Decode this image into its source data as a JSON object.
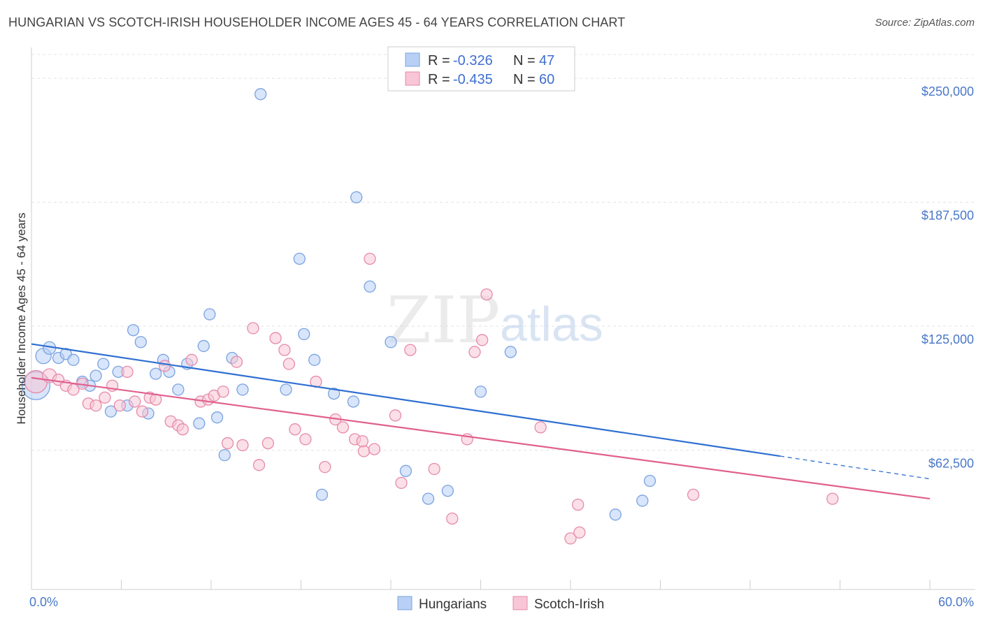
{
  "title": "HUNGARIAN VS SCOTCH-IRISH HOUSEHOLDER INCOME AGES 45 - 64 YEARS CORRELATION CHART",
  "source": "Source: ZipAtlas.com",
  "watermark": {
    "zip": "ZIP",
    "atlas": "atlas"
  },
  "colors": {
    "blue_fill": "#b8d0f5",
    "blue_stroke": "#7aa3e0",
    "blue_line": "#2f6fd1",
    "pink_fill": "#f8c6d6",
    "pink_stroke": "#e68aaa",
    "pink_line": "#e0608e"
  },
  "legend": {
    "rows": [
      {
        "r_label": "R = ",
        "r_value": "-0.326",
        "n_label": "N = ",
        "n_value": "47"
      },
      {
        "r_label": "R = ",
        "r_value": "-0.435",
        "n_label": "N = ",
        "n_value": "60"
      }
    ]
  },
  "bottom_legend": [
    "Hungarians",
    "Scotch-Irish"
  ],
  "chart_data": {
    "type": "scatter",
    "ylabel": "Householder Income Ages 45 - 64 years",
    "x_tick_labels": [
      "0.0%",
      "60.0%"
    ],
    "y_tick_labels": [
      "$250,000",
      "$187,500",
      "$125,000",
      "$62,500"
    ],
    "y_ticks": [
      250000,
      187500,
      125000,
      62500
    ],
    "xlim": [
      0,
      60
    ],
    "ylim": [
      0,
      262000
    ],
    "grid": true,
    "legend_position": "top-center",
    "series": [
      {
        "name": "Hungarians",
        "trend": {
          "x0": 0,
          "y0": 116000,
          "x1": 50,
          "y1": 59500,
          "dash_to_x": 60,
          "dash_to_y": 48000
        },
        "points": [
          [
            0.3,
            95000,
            20
          ],
          [
            0.8,
            110000,
            11
          ],
          [
            1.2,
            114000,
            9
          ],
          [
            1.8,
            109000,
            8
          ],
          [
            2.3,
            111000,
            8
          ],
          [
            2.8,
            108000,
            8
          ],
          [
            3.4,
            97000,
            8
          ],
          [
            3.9,
            95000,
            8
          ],
          [
            4.3,
            100000,
            8
          ],
          [
            4.8,
            106000,
            8
          ],
          [
            5.3,
            82000,
            8
          ],
          [
            5.8,
            102000,
            8
          ],
          [
            6.4,
            85000,
            8
          ],
          [
            6.8,
            123000,
            8
          ],
          [
            7.3,
            117000,
            8
          ],
          [
            7.8,
            81000,
            8
          ],
          [
            8.3,
            101000,
            8
          ],
          [
            8.8,
            108000,
            8
          ],
          [
            9.2,
            102000,
            8
          ],
          [
            9.8,
            93000,
            8
          ],
          [
            10.4,
            106000,
            8
          ],
          [
            11.2,
            76000,
            8
          ],
          [
            11.5,
            115000,
            8
          ],
          [
            11.9,
            131000,
            8
          ],
          [
            12.4,
            79000,
            8
          ],
          [
            12.9,
            60000,
            8
          ],
          [
            13.4,
            109000,
            8
          ],
          [
            14.1,
            93000,
            8
          ],
          [
            15.3,
            242000,
            8
          ],
          [
            17.0,
            93000,
            8
          ],
          [
            17.9,
            159000,
            8
          ],
          [
            18.2,
            121000,
            8
          ],
          [
            18.9,
            108000,
            8
          ],
          [
            19.4,
            40000,
            8
          ],
          [
            20.2,
            91000,
            8
          ],
          [
            21.5,
            87000,
            8
          ],
          [
            21.7,
            190000,
            8
          ],
          [
            22.6,
            145000,
            8
          ],
          [
            24.0,
            117000,
            8
          ],
          [
            25.0,
            52000,
            8
          ],
          [
            26.5,
            38000,
            8
          ],
          [
            27.8,
            42000,
            8
          ],
          [
            30.0,
            92000,
            8
          ],
          [
            32.0,
            112000,
            8
          ],
          [
            39.0,
            30000,
            8
          ],
          [
            40.8,
            37000,
            8
          ],
          [
            41.3,
            47000,
            8
          ]
        ]
      },
      {
        "name": "Scotch-Irish",
        "trend": {
          "x0": 0,
          "y0": 99000,
          "x1": 60,
          "y1": 38000
        },
        "points": [
          [
            0.3,
            97000,
            16
          ],
          [
            1.2,
            100000,
            10
          ],
          [
            1.8,
            98000,
            8
          ],
          [
            2.3,
            95000,
            8
          ],
          [
            2.8,
            93000,
            8
          ],
          [
            3.4,
            96000,
            8
          ],
          [
            3.8,
            86000,
            8
          ],
          [
            4.3,
            85000,
            8
          ],
          [
            4.9,
            89000,
            8
          ],
          [
            5.4,
            95000,
            8
          ],
          [
            5.9,
            85000,
            8
          ],
          [
            6.4,
            102000,
            8
          ],
          [
            6.9,
            87000,
            8
          ],
          [
            7.4,
            82000,
            8
          ],
          [
            7.9,
            89000,
            8
          ],
          [
            8.3,
            88000,
            8
          ],
          [
            8.9,
            105000,
            8
          ],
          [
            9.3,
            77000,
            8
          ],
          [
            9.8,
            75000,
            8
          ],
          [
            10.1,
            73000,
            8
          ],
          [
            10.7,
            108000,
            8
          ],
          [
            11.3,
            87000,
            8
          ],
          [
            11.8,
            88000,
            8
          ],
          [
            12.2,
            90000,
            8
          ],
          [
            12.8,
            92000,
            8
          ],
          [
            13.1,
            66000,
            8
          ],
          [
            13.7,
            107000,
            8
          ],
          [
            14.1,
            65000,
            8
          ],
          [
            14.8,
            124000,
            8
          ],
          [
            15.2,
            55000,
            8
          ],
          [
            15.8,
            66000,
            8
          ],
          [
            16.3,
            119000,
            8
          ],
          [
            16.9,
            113000,
            8
          ],
          [
            17.2,
            106000,
            8
          ],
          [
            17.6,
            73000,
            8
          ],
          [
            18.3,
            68000,
            8
          ],
          [
            19.0,
            97000,
            8
          ],
          [
            19.6,
            54000,
            8
          ],
          [
            20.3,
            78000,
            8
          ],
          [
            20.8,
            74000,
            8
          ],
          [
            21.6,
            68000,
            8
          ],
          [
            22.2,
            62000,
            8
          ],
          [
            22.6,
            159000,
            8
          ],
          [
            22.9,
            63000,
            8
          ],
          [
            24.3,
            80000,
            8
          ],
          [
            24.7,
            46000,
            8
          ],
          [
            25.3,
            113000,
            8
          ],
          [
            26.9,
            53000,
            8
          ],
          [
            28.1,
            28000,
            8
          ],
          [
            29.1,
            68000,
            8
          ],
          [
            29.6,
            112000,
            8
          ],
          [
            30.1,
            118000,
            8
          ],
          [
            30.4,
            141000,
            8
          ],
          [
            34.0,
            74000,
            8
          ],
          [
            36.5,
            35000,
            8
          ],
          [
            36.0,
            18000,
            8
          ],
          [
            36.6,
            21000,
            8
          ],
          [
            44.2,
            40000,
            8
          ],
          [
            53.5,
            38000,
            8
          ],
          [
            22.1,
            67000,
            8
          ]
        ]
      }
    ]
  }
}
